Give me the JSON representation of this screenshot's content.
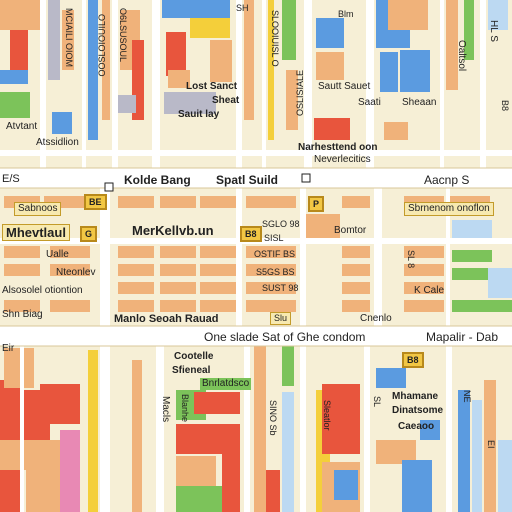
{
  "colors": {
    "background": "#f6efd6",
    "road": "#ffffff",
    "block_orange": "#f0b27a",
    "block_red": "#e8553d",
    "block_blue": "#5b9be0",
    "block_green": "#7cc35a",
    "block_pink": "#e889b4",
    "block_lightblue": "#bcd9f2",
    "block_yellow": "#f4cf3a",
    "block_gray": "#b9b9c8"
  },
  "labels": {
    "top_name_1": "Lost Sanct",
    "top_name_2": "Sheat",
    "top_name_3": "Sauit lay",
    "top_name_4": "Sautt Sauet",
    "top_name_5": "Saati",
    "top_name_6": "Sheaan",
    "left_1": "Atvtant",
    "left_2": "Atssidlion",
    "center_1": "Narhesttend oon",
    "center_2": "Neverlecitics",
    "avenue_north_1": "Kolde Bang",
    "avenue_north_2": "Spatl Suild",
    "avenue_north_3": "Aacnp S",
    "corner_ne": "E/S",
    "corner_ne_2": "Sbrnenom onoflon",
    "row_1_left": "Sabnoos",
    "row_1_badge": "BE",
    "big_left": "Mhevtlaul",
    "big_center": "MerKellvb.un",
    "small_center_1": "SGLO 98",
    "small_center_2": "OSTIF BS",
    "small_center_3": "S5GS BS",
    "small_center_4": "SUST 98",
    "small_center_5": "SISL",
    "bomtor": "Bomtor",
    "row_left_a": "Ualle",
    "row_left_b": "Nteonlev",
    "row_left_c": "Alsosolel otiontion",
    "row_left_d": "Shn Biag",
    "road_badge": "B8",
    "road_mid_left": "Manlo Seoah Rauad",
    "road_mid_sm": "Slu",
    "road_mid_right": "Cnenlo",
    "kcale": "K Cale",
    "avenue_south_1": "One slade Sat of Ghe condom",
    "avenue_south_2": "Mapalir - Dab",
    "south_1": "Cootelle",
    "south_2": "Sfieneal",
    "south_badge": "Bnrlatdsco",
    "south_right_1": "Mhamane",
    "south_right_2": "Dinatsome",
    "south_right_3": "Caeaoo",
    "vert_1": "OOSLOIOUILO",
    "vert_2": "O6LSUSOUL",
    "vert_3": "MCIAILI OIOM",
    "vert_4": "SLOOIUISL O",
    "vert_5": "OSLISIALE",
    "vert_6": "Macls",
    "vert_7": "Blanhe",
    "vert_8": "SINO Sb",
    "vert_9": "Oaltsol",
    "vert_10": "HL S",
    "vert_11": "Sleatlor",
    "vert_12": "SL 8",
    "vert_13": "SL",
    "vert_14": "NE",
    "vert_15": "EI",
    "vert_16": "B8",
    "top_left_1": "Blm",
    "top_left_2": "SH",
    "top_far_left": "Eir",
    "marker_1": "P",
    "marker_2": "G"
  }
}
